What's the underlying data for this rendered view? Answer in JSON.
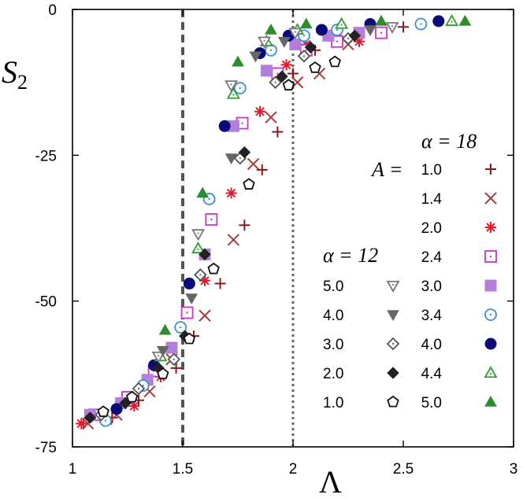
{
  "chart_data": {
    "type": "scatter",
    "xlabel": "Λ",
    "ylabel": "S",
    "ylabel_sub": "2",
    "xlim": [
      1,
      3
    ],
    "ylim": [
      -75,
      0
    ],
    "xticks": [
      "1",
      "1.5",
      "2",
      "2.5",
      "3"
    ],
    "yticks": [
      "0",
      "-25",
      "-50",
      "-75"
    ],
    "xtick_values": [
      1,
      1.5,
      2,
      2.5,
      3
    ],
    "ytick_values": [
      0,
      -25,
      -50,
      -75
    ],
    "vlines": [
      {
        "x": 1.5,
        "style": "dashed"
      },
      {
        "x": 2.0,
        "style": "dotted"
      }
    ],
    "legend_groups": [
      {
        "header": "α = 18",
        "param_label": "A =",
        "position": "right",
        "entries": [
          {
            "label": "1.0",
            "marker": "plus",
            "color": "#8b1a1a"
          },
          {
            "label": "1.4",
            "marker": "cross",
            "color": "#a63c3c"
          },
          {
            "label": "2.0",
            "marker": "star",
            "color": "#e8192c"
          },
          {
            "label": "2.4",
            "marker": "square-open",
            "color": "#cc33cc"
          },
          {
            "label": "3.0",
            "marker": "square-filled",
            "color": "#b57edc"
          },
          {
            "label": "3.4",
            "marker": "circle-open",
            "color": "#3b8fd6"
          },
          {
            "label": "4.0",
            "marker": "circle-filled",
            "color": "#0a0a78"
          },
          {
            "label": "4.4",
            "marker": "triangle-open",
            "color": "#2e9e2e"
          },
          {
            "label": "5.0",
            "marker": "triangle-filled",
            "color": "#2e8b2e"
          }
        ]
      },
      {
        "header": "α = 12",
        "param_label": "",
        "position": "middle",
        "entries": [
          {
            "label": "5.0",
            "marker": "triangle-down-open",
            "color": "#777777"
          },
          {
            "label": "4.0",
            "marker": "triangle-down-filled",
            "color": "#666666"
          },
          {
            "label": "3.0",
            "marker": "diamond-open",
            "color": "#555555"
          },
          {
            "label": "2.0",
            "marker": "diamond-filled",
            "color": "#222222"
          },
          {
            "label": "1.0",
            "marker": "pentagon-open",
            "color": "#111111"
          }
        ]
      }
    ],
    "series": [
      {
        "name": "α=18, A=1.0",
        "marker": "plus",
        "color": "#8b1a1a",
        "points": [
          [
            1.05,
            -71
          ],
          [
            1.18,
            -70
          ],
          [
            1.3,
            -67
          ],
          [
            1.47,
            -61.5
          ],
          [
            1.55,
            -56
          ],
          [
            1.67,
            -47
          ],
          [
            1.78,
            -37
          ],
          [
            1.86,
            -27.5
          ],
          [
            1.93,
            -21
          ],
          [
            2.0,
            -11
          ],
          [
            2.1,
            -7
          ],
          [
            2.3,
            -4.5
          ],
          [
            2.5,
            -3
          ]
        ]
      },
      {
        "name": "α=18, A=1.4",
        "marker": "cross",
        "color": "#a63c3c",
        "points": [
          [
            1.07,
            -71
          ],
          [
            1.2,
            -69.5
          ],
          [
            1.35,
            -65.5
          ],
          [
            1.45,
            -60
          ],
          [
            1.6,
            -52.5
          ],
          [
            1.73,
            -39.5
          ],
          [
            1.82,
            -26.5
          ],
          [
            1.9,
            -18.5
          ],
          [
            2.02,
            -12.5
          ],
          [
            2.12,
            -11
          ],
          [
            2.25,
            -6
          ],
          [
            2.4,
            -4
          ]
        ]
      },
      {
        "name": "α=18, A=2.0",
        "marker": "star",
        "color": "#e8192c",
        "points": [
          [
            1.04,
            -71
          ],
          [
            1.16,
            -70.5
          ],
          [
            1.28,
            -68
          ],
          [
            1.4,
            -63
          ],
          [
            1.6,
            -46.5
          ],
          [
            1.72,
            -31.5
          ],
          [
            1.85,
            -17.5
          ],
          [
            1.97,
            -9.5
          ],
          [
            2.06,
            -6
          ],
          [
            2.2,
            -5
          ],
          [
            2.3,
            -5.5
          ]
        ]
      },
      {
        "name": "α=18, A=2.4",
        "marker": "square-open",
        "color": "#cc33cc",
        "points": [
          [
            1.1,
            -69.5
          ],
          [
            1.25,
            -66.5
          ],
          [
            1.37,
            -62
          ],
          [
            1.52,
            -52
          ],
          [
            1.63,
            -36
          ],
          [
            1.77,
            -19.5
          ],
          [
            1.93,
            -11
          ],
          [
            2.06,
            -7
          ],
          [
            2.2,
            -5.5
          ],
          [
            2.4,
            -4
          ]
        ]
      },
      {
        "name": "α=18, A=3.0",
        "marker": "square-filled",
        "color": "#b57edc",
        "points": [
          [
            1.08,
            -69.5
          ],
          [
            1.22,
            -67.5
          ],
          [
            1.34,
            -63.5
          ],
          [
            1.45,
            -58
          ],
          [
            1.6,
            -42
          ],
          [
            1.73,
            -20
          ],
          [
            1.88,
            -10.5
          ],
          [
            2.01,
            -6
          ],
          [
            2.16,
            -4.5
          ],
          [
            2.3,
            -4
          ]
        ]
      },
      {
        "name": "α=18, A=3.4",
        "marker": "circle-open",
        "color": "#3b8fd6",
        "points": [
          [
            1.15,
            -70.5
          ],
          [
            1.32,
            -64.5
          ],
          [
            1.49,
            -54.5
          ],
          [
            1.62,
            -32.5
          ],
          [
            1.76,
            -13.5
          ],
          [
            1.9,
            -7
          ],
          [
            2.05,
            -4.5
          ],
          [
            2.2,
            -3.5
          ],
          [
            2.58,
            -2.5
          ]
        ]
      },
      {
        "name": "α=18, A=4.0",
        "marker": "circle-filled",
        "color": "#0a0a78",
        "points": [
          [
            1.2,
            -68.5
          ],
          [
            1.37,
            -61
          ],
          [
            1.53,
            -47
          ],
          [
            1.69,
            -20
          ],
          [
            1.85,
            -7.5
          ],
          [
            1.98,
            -4.5
          ],
          [
            2.13,
            -3.5
          ],
          [
            2.35,
            -2.5
          ],
          [
            2.66,
            -2
          ]
        ]
      },
      {
        "name": "α=18, A=4.4",
        "marker": "triangle-open",
        "color": "#2e9e2e",
        "points": [
          [
            1.4,
            -59.5
          ],
          [
            1.57,
            -41
          ],
          [
            1.73,
            -14.5
          ],
          [
            1.88,
            -5.5
          ],
          [
            2.02,
            -3.5
          ],
          [
            2.22,
            -2.5
          ],
          [
            2.72,
            -2
          ]
        ]
      },
      {
        "name": "α=18, A=5.0",
        "marker": "triangle-filled",
        "color": "#2e8b2e",
        "points": [
          [
            1.42,
            -55
          ],
          [
            1.59,
            -31.5
          ],
          [
            1.75,
            -9
          ],
          [
            1.9,
            -3.5
          ],
          [
            2.06,
            -2.5
          ],
          [
            2.4,
            -2
          ],
          [
            2.78,
            -2
          ]
        ]
      },
      {
        "name": "α=12, A=5.0",
        "marker": "triangle-down-open",
        "color": "#777777",
        "points": [
          [
            1.39,
            -59.5
          ],
          [
            1.57,
            -38.5
          ],
          [
            1.72,
            -13
          ],
          [
            1.87,
            -5.5
          ],
          [
            2.01,
            -4
          ],
          [
            2.45,
            -3
          ]
        ]
      },
      {
        "name": "α=12, A=4.0",
        "marker": "triangle-down-filled",
        "color": "#666666",
        "points": [
          [
            1.41,
            -58.5
          ],
          [
            1.54,
            -49.5
          ],
          [
            1.72,
            -25.5
          ],
          [
            1.83,
            -8
          ],
          [
            1.96,
            -5.5
          ],
          [
            2.35,
            -3.5
          ]
        ]
      },
      {
        "name": "α=12, A=3.0",
        "marker": "diamond-open",
        "color": "#555555",
        "points": [
          [
            1.13,
            -69.5
          ],
          [
            1.3,
            -65
          ],
          [
            1.46,
            -60
          ],
          [
            1.58,
            -45.5
          ],
          [
            1.76,
            -25.5
          ],
          [
            1.92,
            -12.5
          ],
          [
            2.05,
            -8
          ],
          [
            2.25,
            -5
          ]
        ]
      },
      {
        "name": "α=12, A=2.0",
        "marker": "diamond-filled",
        "color": "#222222",
        "points": [
          [
            1.08,
            -70
          ],
          [
            1.24,
            -67.5
          ],
          [
            1.39,
            -61.5
          ],
          [
            1.51,
            -56
          ],
          [
            1.6,
            -42
          ],
          [
            1.78,
            -24.5
          ],
          [
            1.95,
            -11.5
          ],
          [
            2.08,
            -6.5
          ],
          [
            2.28,
            -4.5
          ]
        ]
      },
      {
        "name": "α=12, A=1.0",
        "marker": "pentagon-open",
        "color": "#111111",
        "points": [
          [
            1.14,
            -69
          ],
          [
            1.27,
            -66.5
          ],
          [
            1.41,
            -62.5
          ],
          [
            1.53,
            -56.5
          ],
          [
            1.64,
            -44.5
          ],
          [
            1.8,
            -30
          ],
          [
            1.98,
            -13
          ],
          [
            2.1,
            -10
          ],
          [
            2.19,
            -9
          ]
        ]
      }
    ]
  }
}
